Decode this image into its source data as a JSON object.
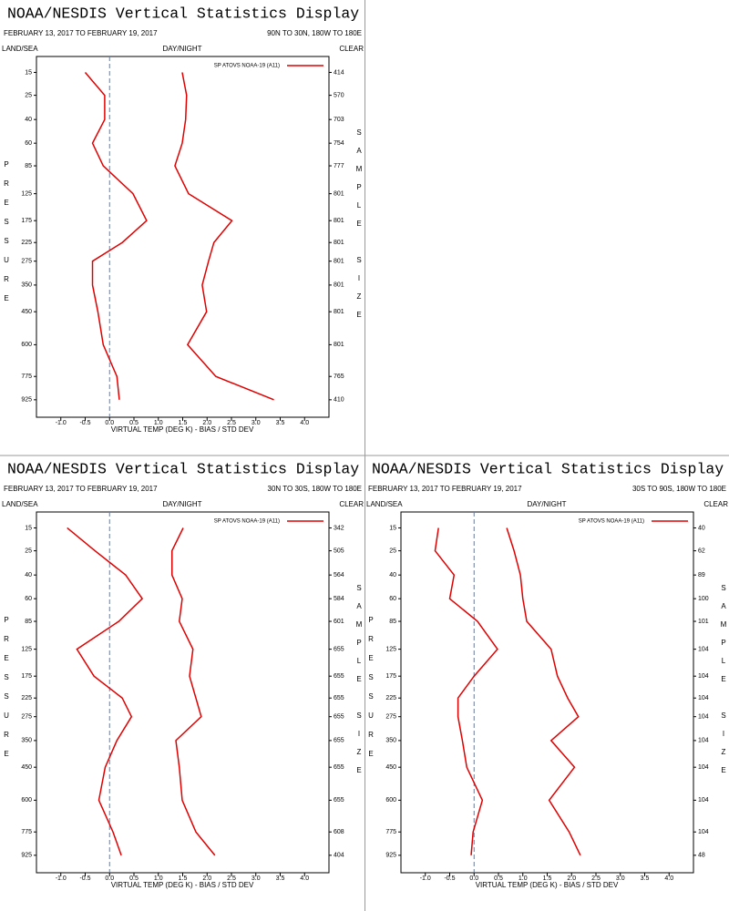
{
  "chart_data": [
    {
      "type": "line",
      "title": "NOAA/NESDIS Vertical Statistics Display",
      "date_range": "FEBRUARY 13, 2017 TO FEBRUARY 19, 2017",
      "region": "90N TO 30N, 180W TO 180E",
      "land_sea": "LAND/SEA",
      "day_night": "DAY/NIGHT",
      "clear": "CLEAR",
      "ylabel": "PRESSURE",
      "y2label": "SAMPLE SIZE",
      "xlabel": "VIRTUAL TEMP (DEG K) - BIAS / STD DEV",
      "y": [
        15,
        25,
        40,
        60,
        85,
        125,
        175,
        225,
        275,
        350,
        450,
        600,
        775,
        925
      ],
      "sample_size": [
        414,
        570,
        703,
        754,
        777,
        801,
        801,
        801,
        801,
        801,
        801,
        801,
        765,
        410
      ],
      "series": [
        {
          "name": "SP ATOVS NOAA-19 (A11)",
          "color": "#e00000",
          "values": [
            -0.5,
            -0.1,
            -0.1,
            -0.35,
            -0.13,
            0.48,
            0.76,
            0.26,
            -0.35,
            -0.35,
            -0.24,
            -0.13,
            0.15,
            0.2
          ],
          "std_dev": [
            1.49,
            1.58,
            1.56,
            1.49,
            1.34,
            1.62,
            2.51,
            2.14,
            2.03,
            1.9,
            1.99,
            1.6,
            2.18,
            3.37
          ]
        }
      ],
      "xlim": [
        -1.5,
        4.5
      ],
      "xticks": [
        {
          "value": -1,
          "label": "-1.0"
        },
        -0.5,
        {
          "value": 0,
          "label": "0.0"
        },
        0.5,
        {
          "value": 1,
          "label": "1.0"
        },
        1.5,
        {
          "value": 2,
          "label": "2.0"
        },
        2.5,
        {
          "value": 3,
          "label": "3.0"
        },
        3.5,
        {
          "value": 4,
          "label": "4.0"
        }
      ],
      "ylim": [
        10,
        1050
      ],
      "yticks": [
        15,
        25,
        40,
        60,
        85,
        125,
        175,
        225,
        275,
        350,
        450,
        600,
        775,
        925
      ]
    },
    {
      "type": "line",
      "title": "NOAA/NESDIS Vertical Statistics Display",
      "date_range": "FEBRUARY 13, 2017 TO FEBRUARY 19, 2017",
      "region": "30N TO 30S, 180W TO 180E",
      "land_sea": "LAND/SEA",
      "day_night": "DAY/NIGHT",
      "clear": "CLEAR",
      "ylabel": "PRESSURE",
      "y2label": "SAMPLE SIZE",
      "xlabel": "VIRTUAL TEMP (DEG K) - BIAS / STD DEV",
      "y": [
        15,
        25,
        40,
        60,
        85,
        125,
        175,
        225,
        275,
        350,
        450,
        600,
        775,
        925
      ],
      "sample_size": [
        342,
        505,
        564,
        584,
        601,
        655,
        655,
        655,
        655,
        655,
        655,
        655,
        608,
        404
      ],
      "series": [
        {
          "name": "SP ATOVS NOAA-19 (A11)",
          "color": "#e00000",
          "values": [
            -0.87,
            -0.3,
            0.33,
            0.67,
            0.19,
            -0.67,
            -0.32,
            0.26,
            0.45,
            0.15,
            -0.09,
            -0.22,
            0.07,
            0.24
          ],
          "std_dev": [
            1.51,
            1.28,
            1.28,
            1.49,
            1.43,
            1.71,
            1.64,
            1.77,
            1.88,
            1.36,
            1.43,
            1.49,
            1.77,
            2.16
          ]
        }
      ],
      "xlim": [
        -1.5,
        4.5
      ],
      "xticks": [
        {
          "value": -1,
          "label": "-1.0"
        },
        -0.5,
        {
          "value": 0,
          "label": "0.0"
        },
        0.5,
        {
          "value": 1,
          "label": "1.0"
        },
        1.5,
        {
          "value": 2,
          "label": "2.0"
        },
        2.5,
        {
          "value": 3,
          "label": "3.0"
        },
        3.5,
        {
          "value": 4,
          "label": "4.0"
        }
      ],
      "ylim": [
        10,
        1050
      ],
      "yticks": [
        15,
        25,
        40,
        60,
        85,
        125,
        175,
        225,
        275,
        350,
        450,
        600,
        775,
        925
      ]
    },
    {
      "type": "line",
      "title": "NOAA/NESDIS Vertical Statistics Display",
      "date_range": "FEBRUARY 13, 2017 TO FEBRUARY 19, 2017",
      "region": "30S TO 90S, 180W TO 180E",
      "land_sea": "LAND/SEA",
      "day_night": "DAY/NIGHT",
      "clear": "CLEAR",
      "ylabel": "PRESSURE",
      "y2label": "SAMPLE SIZE",
      "xlabel": "VIRTUAL TEMP (DEG K) - BIAS / STD DEV",
      "y": [
        15,
        25,
        40,
        60,
        85,
        125,
        175,
        225,
        275,
        350,
        450,
        600,
        775,
        925
      ],
      "sample_size": [
        40,
        62,
        89,
        100,
        101,
        104,
        104,
        104,
        104,
        104,
        104,
        104,
        104,
        48
      ],
      "series": [
        {
          "name": "SP ATOVS NOAA-19 (A11)",
          "color": "#e00000",
          "values": [
            -0.73,
            -0.8,
            -0.41,
            -0.5,
            0.07,
            0.48,
            0,
            -0.33,
            -0.33,
            -0.24,
            -0.15,
            0.17,
            -0.02,
            -0.06
          ],
          "std_dev": [
            0.67,
            0.82,
            0.95,
            1.0,
            1.08,
            1.58,
            1.71,
            1.92,
            2.14,
            1.58,
            2.06,
            1.54,
            1.95,
            2.18
          ]
        }
      ],
      "xlim": [
        -1.5,
        4.5
      ],
      "xticks": [
        {
          "value": -1,
          "label": "-1.0"
        },
        -0.5,
        {
          "value": 0,
          "label": "0.0"
        },
        0.5,
        {
          "value": 1,
          "label": "1.0"
        },
        1.5,
        {
          "value": 2,
          "label": "2.0"
        },
        2.5,
        {
          "value": 3,
          "label": "3.0"
        },
        3.5,
        {
          "value": 4,
          "label": "4.0"
        }
      ],
      "ylim": [
        10,
        1050
      ],
      "yticks": [
        15,
        25,
        40,
        60,
        85,
        125,
        175,
        225,
        275,
        350,
        450,
        600,
        775,
        925
      ]
    }
  ]
}
